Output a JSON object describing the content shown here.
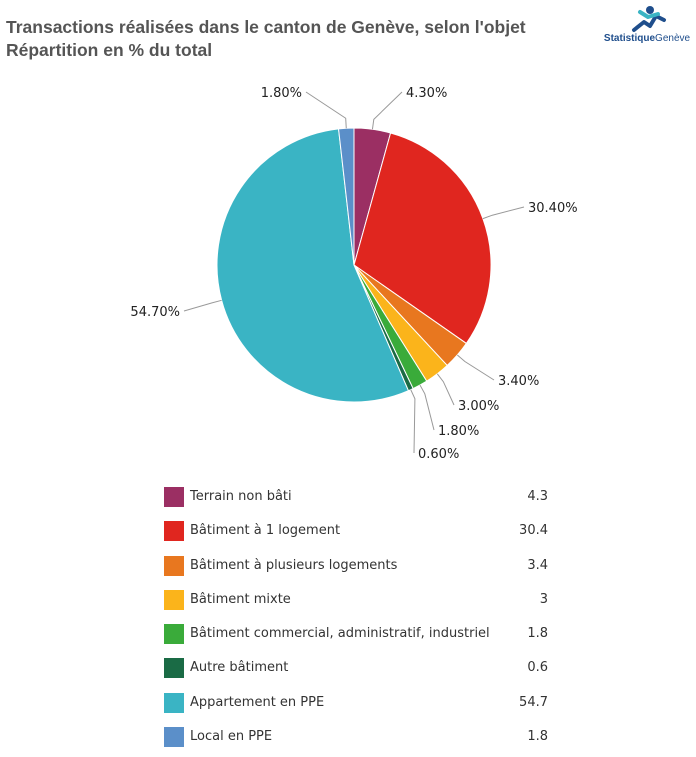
{
  "title_line1": "Transactions réalisées dans le canton de Genève, selon l'objet",
  "title_line2": "Répartition en % du total",
  "logo": {
    "part1": "Statistique",
    "part2": "Genève"
  },
  "chart_data": {
    "type": "pie",
    "categories": [
      "Terrain non bâti",
      "Bâtiment à 1 logement",
      "Bâtiment à plusieurs logements",
      "Bâtiment mixte",
      "Bâtiment commercial, administratif, industriel",
      "Autre bâtiment",
      "Appartement en PPE",
      "Local en PPE"
    ],
    "values": [
      4.3,
      30.4,
      3.4,
      3,
      1.8,
      0.6,
      54.7,
      1.8
    ],
    "labels": [
      "4.30%",
      "30.40%",
      "3.40%",
      "3.00%",
      "1.80%",
      "0.60%",
      "54.70%",
      "1.80%"
    ],
    "value_labels": [
      "4.3",
      "30.4",
      "3.4",
      "3",
      "1.8",
      "0.6",
      "54.7",
      "1.8"
    ],
    "colors": [
      "#9b2f63",
      "#e0261f",
      "#e8771f",
      "#fbb41b",
      "#3aab3a",
      "#1a6b45",
      "#3ab4c4",
      "#5b8fc9"
    ],
    "legend_position": "bottom"
  }
}
